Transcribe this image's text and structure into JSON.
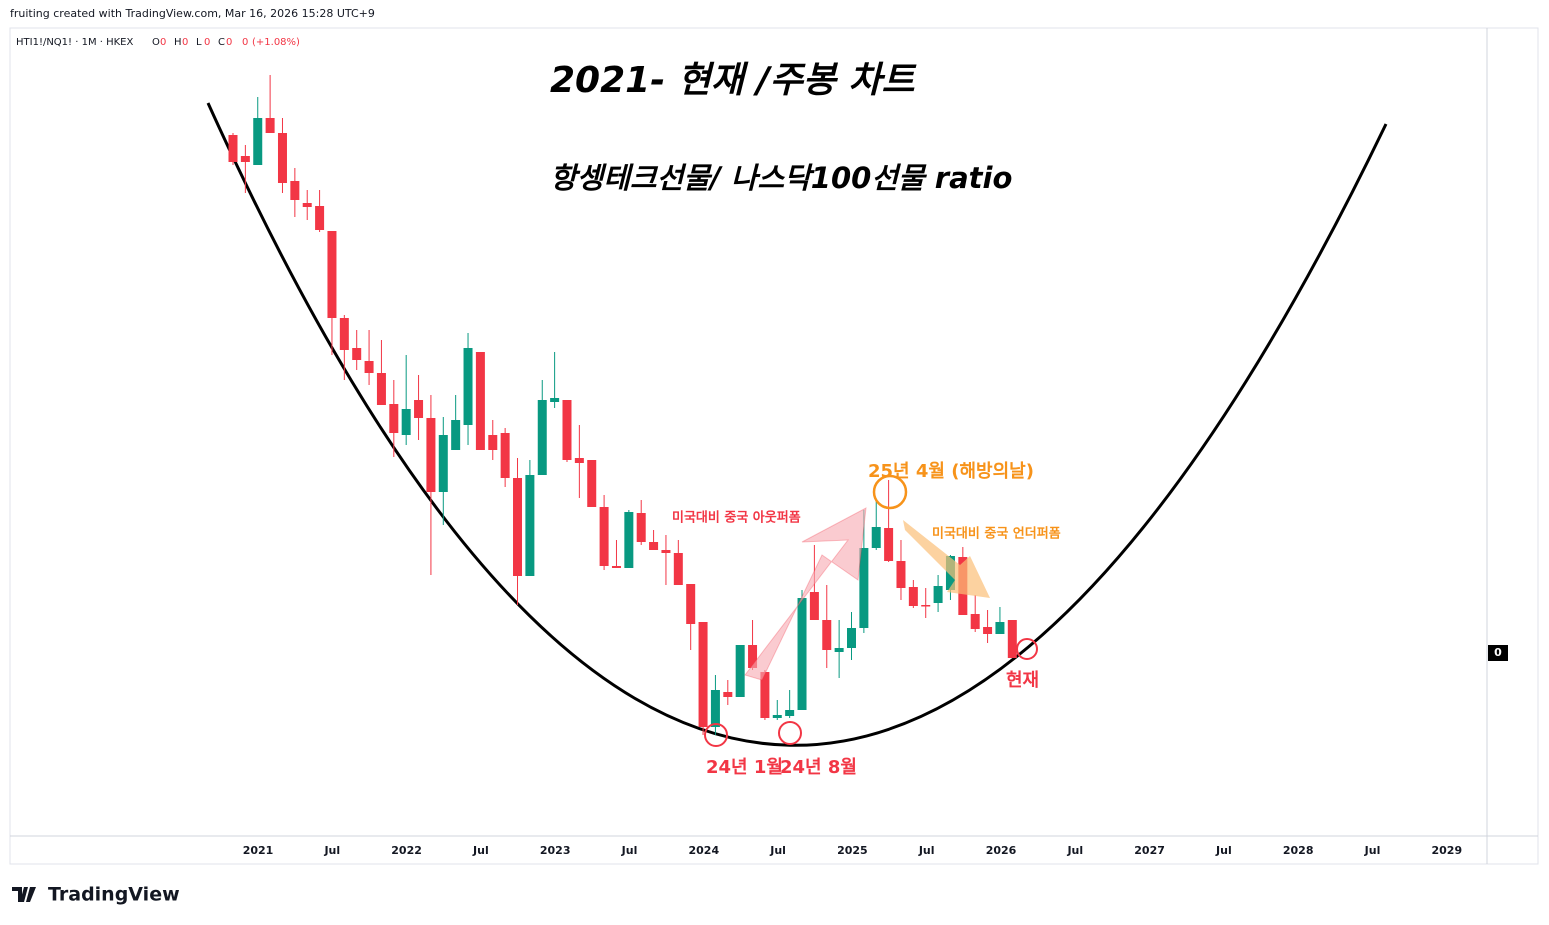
{
  "header": {
    "credit": "fruiting created with TradingView.com, Mar 16, 2026 15:28 UTC+9",
    "logo": "TradingView"
  },
  "legend": {
    "symbol": "HTI1!/NQ1! · 1M · HKEX",
    "ohlc": [
      [
        "O",
        "0"
      ],
      [
        "H",
        "0"
      ],
      [
        "L",
        "0"
      ],
      [
        "C",
        "0"
      ]
    ],
    "change": "0",
    "change_pct": "(+1.08%)"
  },
  "chart_data": {
    "type": "candlestick",
    "title": "2021- 현재 /주봉 차트",
    "subtitle": "항셍테크선물/ 나스닥100선물 ratio",
    "up_color": "#089981",
    "down_color": "#f23645",
    "ylim": [
      -18.3,
      62.5
    ],
    "yticks": [
      0
    ],
    "xticks": [
      "2021",
      "Jul",
      "2022",
      "Jul",
      "2023",
      "Jul",
      "2024",
      "Jul",
      "2025",
      "Jul",
      "2026",
      "Jul",
      "2027",
      "Jul",
      "2028",
      "Jul",
      "2029"
    ],
    "open": [
      51.8,
      49.7,
      48.8,
      53.5,
      52.0,
      47.2,
      45.0,
      44.7,
      42.2,
      33.5,
      30.5,
      29.2,
      28.0,
      24.9,
      21.8,
      25.3,
      23.5,
      16.1,
      20.3,
      22.8,
      30.1,
      21.8,
      22.0,
      17.5,
      7.7,
      17.8,
      25.1,
      25.3,
      19.5,
      19.3,
      14.6,
      8.7,
      8.5,
      14.0,
      11.1,
      10.3,
      10.0,
      6.9,
      3.1,
      -7.4,
      -3.9,
      -4.4,
      0.8,
      -1.9,
      -6.5,
      -6.3,
      -5.7,
      6.1,
      3.3,
      0.1,
      0.5,
      2.5,
      10.5,
      12.5,
      9.2,
      6.6,
      4.8,
      5.0,
      6.3,
      9.6,
      3.9,
      2.6,
      1.9,
      3.3
    ],
    "high": [
      52.0,
      50.8,
      55.6,
      57.8,
      53.5,
      48.5,
      46.3,
      46.3,
      42.2,
      33.8,
      32.3,
      32.3,
      31.3,
      27.3,
      29.8,
      27.8,
      25.8,
      23.6,
      25.8,
      32.0,
      30.1,
      23.3,
      22.5,
      19.5,
      19.3,
      27.3,
      30.1,
      25.3,
      22.8,
      19.3,
      15.8,
      11.3,
      14.3,
      15.3,
      12.3,
      11.8,
      11.3,
      6.9,
      3.1,
      -2.2,
      -2.7,
      0.8,
      3.3,
      -1.7,
      -4.7,
      -3.7,
      6.3,
      10.8,
      6.8,
      3.3,
      4.1,
      14.3,
      15.3,
      17.3,
      11.3,
      7.3,
      6.5,
      7.8,
      9.8,
      10.6,
      5.8,
      4.3,
      4.6,
      3.3
    ],
    "low": [
      48.8,
      46.0,
      48.8,
      52.0,
      46.0,
      43.6,
      43.3,
      42.1,
      29.8,
      27.3,
      28.3,
      26.8,
      24.8,
      19.6,
      20.8,
      21.3,
      7.8,
      12.8,
      20.3,
      20.8,
      20.3,
      19.3,
      16.6,
      4.8,
      7.7,
      17.8,
      24.5,
      19.1,
      15.5,
      14.6,
      8.3,
      8.5,
      8.5,
      10.8,
      10.3,
      6.8,
      6.8,
      0.3,
      -8.2,
      -8.2,
      -5.2,
      -4.4,
      -1.7,
      -6.7,
      -6.7,
      -6.5,
      -5.7,
      3.3,
      -1.5,
      -2.5,
      -0.7,
      2.0,
      10.3,
      9.1,
      5.3,
      4.5,
      3.5,
      4.1,
      5.3,
      3.8,
      2.1,
      1.0,
      1.9,
      -0.5
    ],
    "close": [
      49.1,
      49.1,
      53.5,
      52.0,
      47.0,
      45.3,
      44.6,
      42.3,
      33.5,
      30.3,
      29.3,
      28.0,
      24.8,
      22.0,
      24.4,
      23.5,
      16.1,
      21.8,
      23.3,
      30.5,
      20.3,
      20.3,
      17.5,
      7.7,
      17.8,
      25.3,
      25.5,
      19.3,
      19.0,
      14.6,
      8.7,
      8.5,
      14.1,
      11.1,
      10.3,
      10.0,
      6.8,
      2.9,
      -7.4,
      -3.7,
      -4.4,
      0.8,
      -1.5,
      -6.5,
      -6.2,
      -5.7,
      5.5,
      3.3,
      0.3,
      0.5,
      2.5,
      10.5,
      12.6,
      9.2,
      6.5,
      4.7,
      4.7,
      6.7,
      9.7,
      3.8,
      2.4,
      1.9,
      3.1,
      -0.5
    ],
    "annotations": {
      "peak": "25년 4월 (해방의날)",
      "outperform": "미국대비 중국 아웃퍼폼",
      "underperform": "미국대비 중국 언더퍼폼",
      "low1": "24년 1월",
      "low2": "24년 8월",
      "now": "현재"
    }
  }
}
